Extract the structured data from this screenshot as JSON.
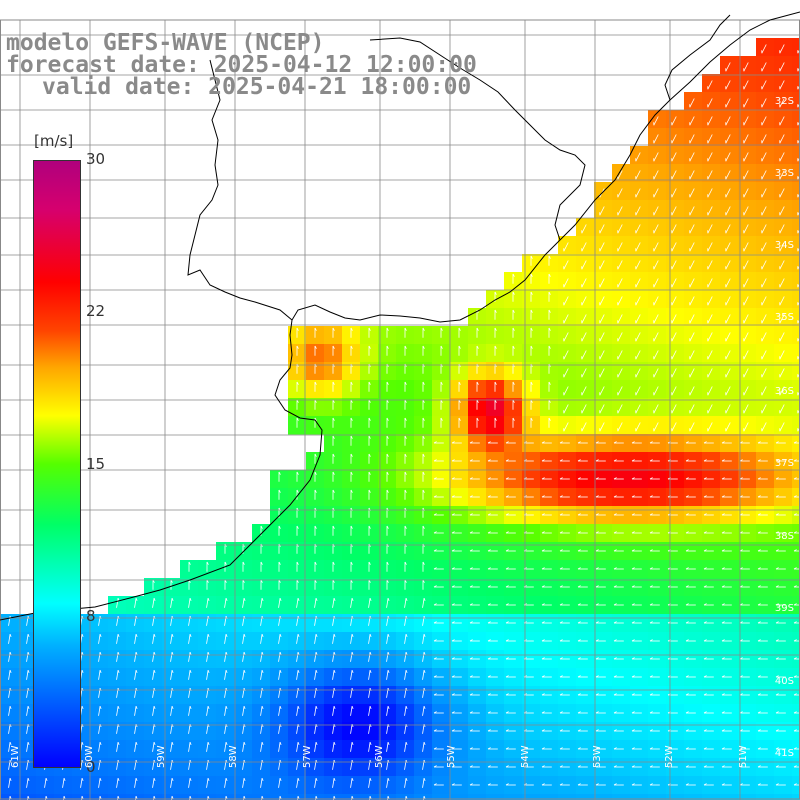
{
  "title": {
    "line1": "modelo GEFS-WAVE (NCEP)",
    "line2": "forecast date: 2025-04-12 12:00:00",
    "line3": "valid date: 2025-04-21 18:00:00"
  },
  "colorbar": {
    "unit": "[m/s]",
    "ticks": [
      "30",
      "22",
      "15",
      "8",
      "0"
    ],
    "tick_values": [
      30,
      22,
      15,
      8,
      0
    ],
    "range": [
      0,
      30
    ]
  },
  "lat_labels": [
    "32S",
    "33S",
    "34S",
    "35S",
    "36S",
    "37S",
    "38S",
    "39S",
    "40S",
    "41S"
  ],
  "lon_labels": [
    "61W",
    "60W",
    "59W",
    "58W",
    "57W",
    "56W",
    "55W",
    "54W",
    "53W",
    "52W",
    "51W"
  ],
  "colors": {
    "land": "#ffffff",
    "grid": "#888888",
    "coast": "#000000",
    "arrow": "#ffffff",
    "title": "#8a8a8a"
  }
}
